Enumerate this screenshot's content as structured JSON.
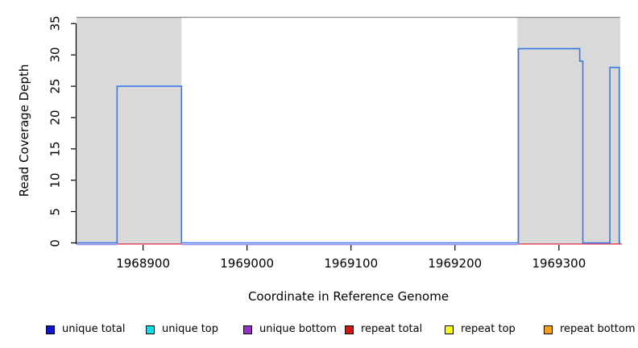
{
  "chart_data": {
    "type": "line",
    "subtype": "step-coverage-plot",
    "title": "",
    "xlabel": "Coordinate in Reference Genome",
    "ylabel": "Read Coverage Depth",
    "xlim": [
      1968836,
      1969359
    ],
    "ylim": [
      0,
      36
    ],
    "x_ticks": [
      1968900,
      1969000,
      1969100,
      1969200,
      1969300
    ],
    "y_ticks": [
      0,
      5,
      10,
      15,
      20,
      25,
      30,
      35
    ],
    "grid": false,
    "legend_position": "bottom",
    "repeat_regions": [
      [
        1968836,
        1968937
      ],
      [
        1969260,
        1969359
      ]
    ],
    "series": [
      {
        "name": "repeat total",
        "role": "baseline-segments",
        "value": 0,
        "color": "#e4475a",
        "segments": [
          [
            1968875,
            1968937
          ],
          [
            1969261,
            1969361
          ]
        ]
      },
      {
        "name": "unique bottom",
        "role": "baseline-segments",
        "value": 0,
        "color": "#9e8ef0",
        "segments": [
          [
            1968836,
            1968875
          ],
          [
            1968937,
            1969261
          ]
        ]
      },
      {
        "name": "unique total",
        "role": "step-line",
        "color": "#3578ea",
        "points": [
          [
            1968836,
            0
          ],
          [
            1968875,
            0
          ],
          [
            1968875,
            25
          ],
          [
            1968937,
            25
          ],
          [
            1968937,
            0
          ],
          [
            1969261,
            0
          ],
          [
            1969261,
            31
          ],
          [
            1969320,
            31
          ],
          [
            1969320,
            29
          ],
          [
            1969323,
            29
          ],
          [
            1969323,
            0
          ],
          [
            1969349,
            0
          ],
          [
            1969349,
            28
          ],
          [
            1969358,
            28
          ],
          [
            1969358,
            0
          ],
          [
            1969359,
            0
          ]
        ]
      }
    ],
    "legend": [
      {
        "label": "unique total",
        "color": "#1414cc"
      },
      {
        "label": "unique top",
        "color": "#10dce6"
      },
      {
        "label": "unique bottom",
        "color": "#9932cc"
      },
      {
        "label": "repeat total",
        "color": "#dc1010"
      },
      {
        "label": "repeat top",
        "color": "#fafa14"
      },
      {
        "label": "repeat bottom",
        "color": "#faa014"
      }
    ],
    "colors": {
      "region": "#d9d9d9",
      "frame": "#8c8c8c",
      "axis": "#000000",
      "background": "#ffffff"
    }
  }
}
